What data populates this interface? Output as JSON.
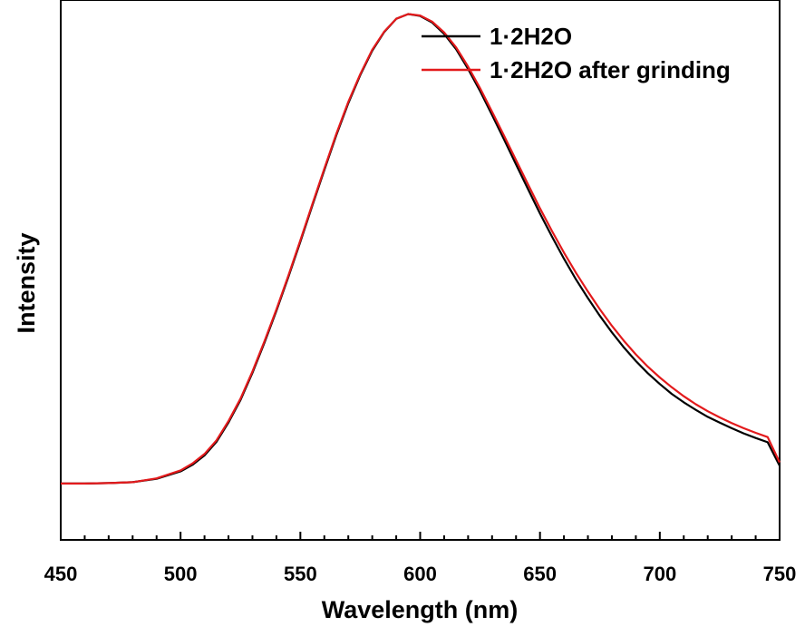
{
  "chart_data": {
    "type": "line",
    "xlabel": "Wavelength (nm)",
    "ylabel": "Intensity",
    "xlim": [
      450,
      750
    ],
    "ylim": [
      -0.12,
      1.03
    ],
    "xticks": [
      450,
      500,
      550,
      600,
      650,
      700,
      750
    ],
    "x_minor_step": 10,
    "y_tick_labels": false,
    "grid": false,
    "legend_position": "top-right",
    "series": [
      {
        "name": "1·2H2O",
        "color": "#000000",
        "x": [
          450,
          460,
          470,
          480,
          490,
          500,
          505,
          510,
          515,
          520,
          525,
          530,
          535,
          540,
          545,
          550,
          555,
          560,
          565,
          570,
          575,
          580,
          585,
          590,
          595,
          600,
          605,
          610,
          615,
          620,
          625,
          630,
          635,
          640,
          645,
          650,
          655,
          660,
          665,
          670,
          675,
          680,
          685,
          690,
          695,
          700,
          705,
          710,
          715,
          720,
          725,
          730,
          735,
          740,
          745,
          750
        ],
        "y": [
          0.0,
          0.0,
          0.001,
          0.003,
          0.01,
          0.026,
          0.04,
          0.06,
          0.089,
          0.13,
          0.178,
          0.236,
          0.3,
          0.368,
          0.44,
          0.515,
          0.592,
          0.668,
          0.742,
          0.81,
          0.87,
          0.922,
          0.962,
          0.99,
          1.0,
          0.996,
          0.982,
          0.958,
          0.925,
          0.883,
          0.836,
          0.785,
          0.733,
          0.68,
          0.627,
          0.575,
          0.526,
          0.479,
          0.435,
          0.395,
          0.357,
          0.322,
          0.29,
          0.261,
          0.235,
          0.212,
          0.191,
          0.173,
          0.157,
          0.142,
          0.13,
          0.118,
          0.107,
          0.097,
          0.088,
          0.038
        ]
      },
      {
        "name": "1·2H2O after grinding",
        "color": "#e31a1c",
        "x": [
          450,
          460,
          470,
          480,
          490,
          500,
          505,
          510,
          515,
          520,
          525,
          530,
          535,
          540,
          545,
          550,
          555,
          560,
          565,
          570,
          575,
          580,
          585,
          590,
          595,
          600,
          605,
          610,
          615,
          620,
          625,
          630,
          635,
          640,
          645,
          650,
          655,
          660,
          665,
          670,
          675,
          680,
          685,
          690,
          695,
          700,
          705,
          710,
          715,
          720,
          725,
          730,
          735,
          740,
          745,
          750
        ],
        "y": [
          0.0,
          0.0,
          0.001,
          0.003,
          0.011,
          0.028,
          0.043,
          0.063,
          0.092,
          0.133,
          0.181,
          0.239,
          0.303,
          0.371,
          0.443,
          0.518,
          0.595,
          0.671,
          0.745,
          0.813,
          0.872,
          0.924,
          0.963,
          0.99,
          1.0,
          0.997,
          0.984,
          0.961,
          0.929,
          0.888,
          0.842,
          0.792,
          0.741,
          0.689,
          0.637,
          0.586,
          0.538,
          0.492,
          0.449,
          0.409,
          0.371,
          0.336,
          0.304,
          0.275,
          0.249,
          0.226,
          0.205,
          0.186,
          0.169,
          0.154,
          0.141,
          0.129,
          0.118,
          0.108,
          0.099,
          0.045
        ]
      }
    ]
  }
}
